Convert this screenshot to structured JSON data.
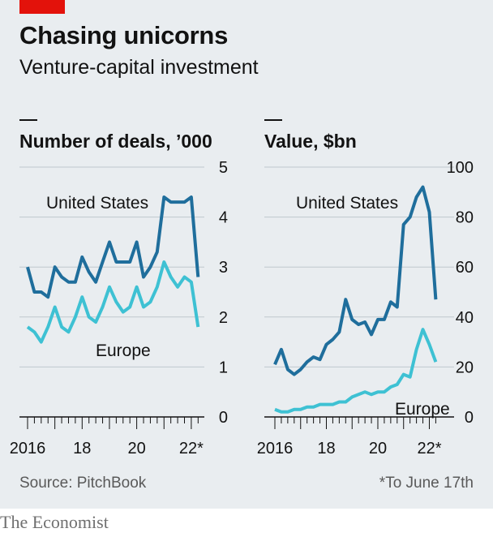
{
  "header": {
    "title": "Chasing unicorns",
    "subtitle": "Venture-capital investment"
  },
  "footer": {
    "source": "Source: PitchBook",
    "footnote": "*To June 17th",
    "brand": "The Economist"
  },
  "colors": {
    "us": "#1f6e9c",
    "europe": "#3ec1d3",
    "brand_red": "#e3120b"
  },
  "chart_data": [
    {
      "type": "line",
      "title": "Number of deals, ’000",
      "x_tick_labels": [
        "2016",
        "18",
        "20",
        "22*"
      ],
      "x_ticks_at": [
        2016,
        2018,
        2020,
        2022
      ],
      "ylim": [
        0,
        5
      ],
      "yticks": [
        "0",
        "1",
        "2",
        "3",
        "4",
        "5"
      ],
      "series": [
        {
          "name": "United States",
          "x": [
            2016.0,
            2016.25,
            2016.5,
            2016.75,
            2017.0,
            2017.25,
            2017.5,
            2017.75,
            2018.0,
            2018.25,
            2018.5,
            2018.75,
            2019.0,
            2019.25,
            2019.5,
            2019.75,
            2020.0,
            2020.25,
            2020.5,
            2020.75,
            2021.0,
            2021.25,
            2021.5,
            2021.75,
            2022.0,
            2022.25
          ],
          "values": [
            3.0,
            2.5,
            2.5,
            2.4,
            3.0,
            2.8,
            2.7,
            2.7,
            3.2,
            2.9,
            2.7,
            3.1,
            3.5,
            3.1,
            3.1,
            3.1,
            3.5,
            2.8,
            3.0,
            3.3,
            4.4,
            4.3,
            4.3,
            4.3,
            4.4,
            2.8
          ]
        },
        {
          "name": "Europe",
          "x": [
            2016.0,
            2016.25,
            2016.5,
            2016.75,
            2017.0,
            2017.25,
            2017.5,
            2017.75,
            2018.0,
            2018.25,
            2018.5,
            2018.75,
            2019.0,
            2019.25,
            2019.5,
            2019.75,
            2020.0,
            2020.25,
            2020.5,
            2020.75,
            2021.0,
            2021.25,
            2021.5,
            2021.75,
            2022.0,
            2022.25
          ],
          "values": [
            1.8,
            1.7,
            1.5,
            1.8,
            2.2,
            1.8,
            1.7,
            2.0,
            2.4,
            2.0,
            1.9,
            2.2,
            2.6,
            2.3,
            2.1,
            2.2,
            2.6,
            2.2,
            2.3,
            2.6,
            3.1,
            2.8,
            2.6,
            2.8,
            2.7,
            1.8
          ]
        }
      ],
      "annotations": [
        {
          "text": "United States",
          "series": "United States"
        },
        {
          "text": "Europe",
          "series": "Europe"
        }
      ]
    },
    {
      "type": "line",
      "title": "Value, $bn",
      "x_tick_labels": [
        "2016",
        "18",
        "20",
        "22*"
      ],
      "x_ticks_at": [
        2016,
        2018,
        2020,
        2022
      ],
      "ylim": [
        0,
        100
      ],
      "yticks": [
        "0",
        "20",
        "40",
        "60",
        "80",
        "100"
      ],
      "series": [
        {
          "name": "United States",
          "x": [
            2016.0,
            2016.25,
            2016.5,
            2016.75,
            2017.0,
            2017.25,
            2017.5,
            2017.75,
            2018.0,
            2018.25,
            2018.5,
            2018.75,
            2019.0,
            2019.25,
            2019.5,
            2019.75,
            2020.0,
            2020.25,
            2020.5,
            2020.75,
            2021.0,
            2021.25,
            2021.5,
            2021.75,
            2022.0,
            2022.25
          ],
          "values": [
            21,
            27,
            19,
            17,
            19,
            22,
            24,
            23,
            29,
            31,
            34,
            47,
            39,
            37,
            38,
            33,
            39,
            39,
            46,
            44,
            77,
            80,
            88,
            92,
            82,
            47
          ]
        },
        {
          "name": "Europe",
          "x": [
            2016.0,
            2016.25,
            2016.5,
            2016.75,
            2017.0,
            2017.25,
            2017.5,
            2017.75,
            2018.0,
            2018.25,
            2018.5,
            2018.75,
            2019.0,
            2019.25,
            2019.5,
            2019.75,
            2020.0,
            2020.25,
            2020.5,
            2020.75,
            2021.0,
            2021.25,
            2021.5,
            2021.75,
            2022.0,
            2022.25
          ],
          "values": [
            3,
            2,
            2,
            3,
            3,
            4,
            4,
            5,
            5,
            5,
            6,
            6,
            8,
            9,
            10,
            9,
            10,
            10,
            12,
            13,
            17,
            16,
            27,
            35,
            29,
            22
          ]
        }
      ],
      "annotations": [
        {
          "text": "United States",
          "series": "United States"
        },
        {
          "text": "Europe",
          "series": "Europe"
        }
      ]
    }
  ]
}
